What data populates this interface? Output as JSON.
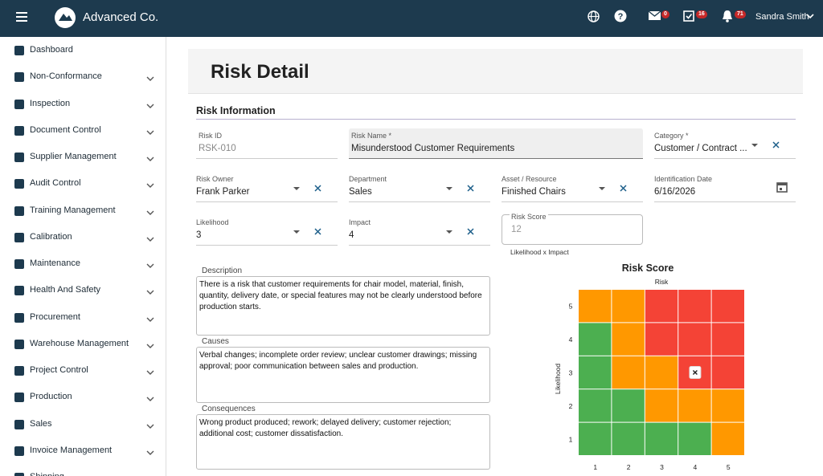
{
  "header": {
    "brand": "Advanced Co.",
    "mail_count": "0",
    "tasks_count": "16",
    "alerts_count": "71",
    "user": "Sandra Smith"
  },
  "sidebar": {
    "items": [
      "Dashboard",
      "Non-Conformance",
      "Inspection",
      "Document Control",
      "Supplier Management",
      "Audit Control",
      "Training Management",
      "Calibration",
      "Maintenance",
      "Health And Safety",
      "Procurement",
      "Warehouse Management",
      "Project Control",
      "Production",
      "Sales",
      "Invoice Management",
      "Shipping"
    ]
  },
  "page": {
    "title": "Risk Detail",
    "section": "Risk Information"
  },
  "form": {
    "fields": [
      {
        "label": "Risk ID",
        "value": "RSK-010"
      },
      {
        "label": "Risk Name *",
        "value": "Misunderstood Customer Requirements"
      },
      {
        "label": "Category *",
        "value": "Customer / Contract ..."
      },
      {
        "label": "Risk Owner",
        "value": "Frank Parker"
      },
      {
        "label": "Department",
        "value": "Sales"
      },
      {
        "label": "Asset / Resource",
        "value": "Finished Chairs"
      },
      {
        "label": "Identification Date",
        "value": "6/16/2026"
      },
      {
        "label": "Likelihood",
        "value": "3"
      },
      {
        "label": "Impact",
        "value": "4"
      },
      {
        "label": "Risk Score",
        "value": "12"
      }
    ],
    "risk_score_hint": "Likelihood x Impact",
    "textareas": [
      {
        "label": "Description",
        "value": "There is a risk that customer requirements for chair model, material, finish, quantity, delivery date, or special features may not be clearly understood before production starts."
      },
      {
        "label": "Causes",
        "value": "Verbal changes; incomplete order review; unclear customer drawings; missing approval; poor communication between sales and production."
      },
      {
        "label": "Consequences",
        "value": "Wrong product produced; rework; delayed delivery; customer rejection; additional cost; customer dissatisfaction."
      }
    ]
  },
  "matrix": {
    "title": "Risk Score",
    "top_label": "Risk",
    "y_label": "Likelihood",
    "xticks": [
      1,
      2,
      3,
      4,
      5
    ],
    "yticks": [
      1,
      2,
      3,
      4,
      5
    ],
    "cells": [
      [
        "#4caf50",
        "#4caf50",
        "#4caf50",
        "#4caf50",
        "#ff9800"
      ],
      [
        "#4caf50",
        "#4caf50",
        "#ff9800",
        "#ff9800",
        "#ff9800"
      ],
      [
        "#4caf50",
        "#ff9800",
        "#ff9800",
        "#f44336",
        "#f44336"
      ],
      [
        "#4caf50",
        "#ff9800",
        "#f44336",
        "#f44336",
        "#f44336"
      ],
      [
        "#ff9800",
        "#ff9800",
        "#f44336",
        "#f44336",
        "#f44336"
      ]
    ]
  }
}
